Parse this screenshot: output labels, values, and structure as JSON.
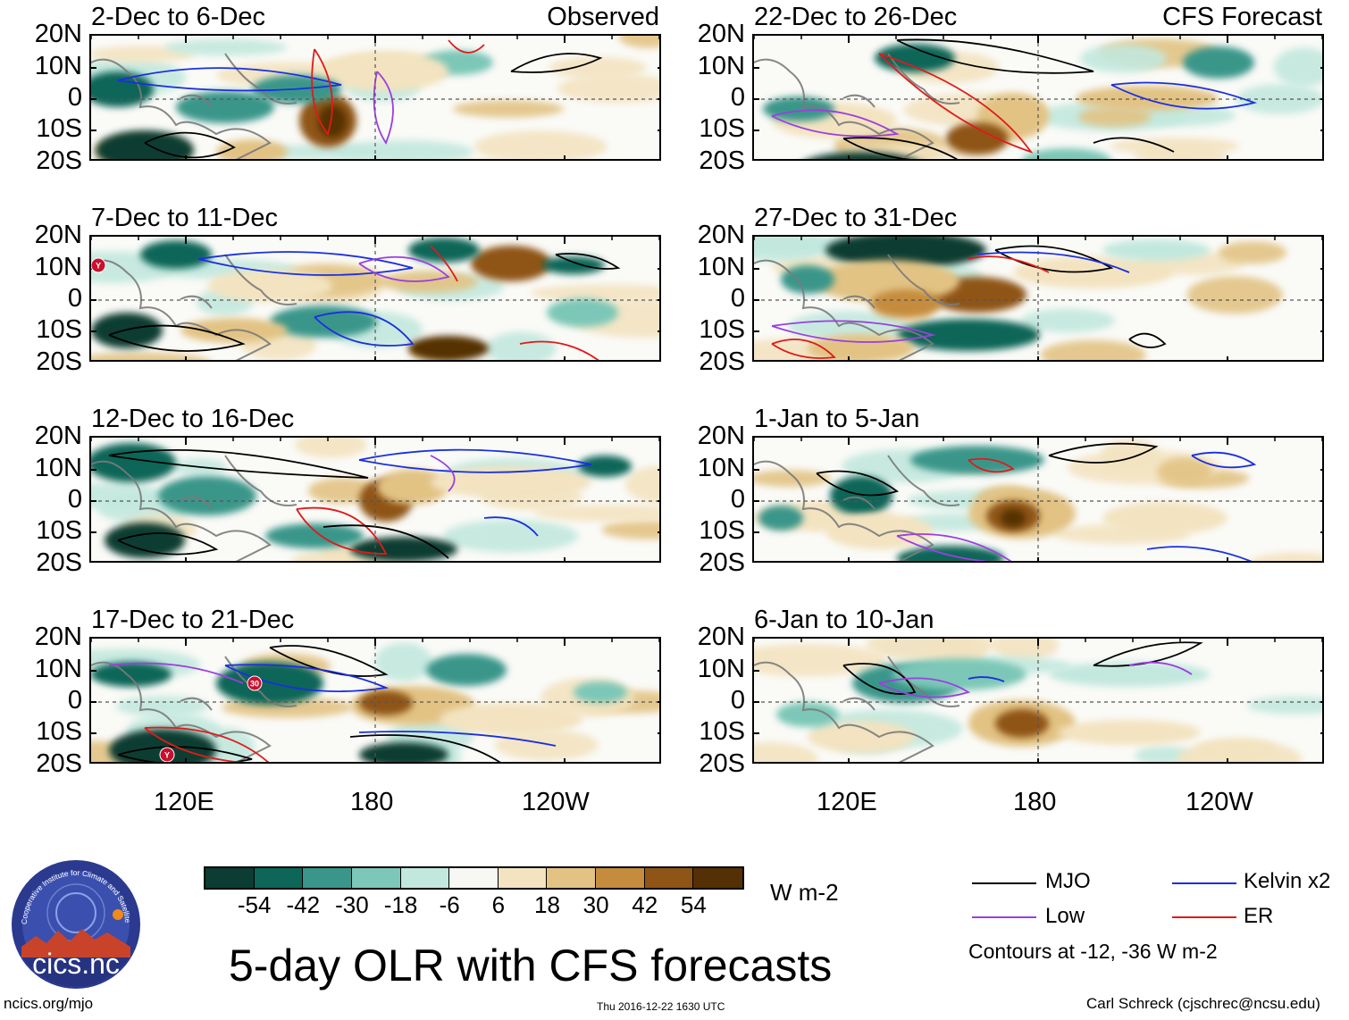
{
  "panels": [
    {
      "title": "2-Dec to 6-Dec",
      "tag": "Observed"
    },
    {
      "title": "22-Dec to 26-Dec",
      "tag": "CFS Forecast"
    },
    {
      "title": "7-Dec to 11-Dec",
      "tag": ""
    },
    {
      "title": "27-Dec to 31-Dec",
      "tag": ""
    },
    {
      "title": "12-Dec to 16-Dec",
      "tag": ""
    },
    {
      "title": "1-Jan to 5-Jan",
      "tag": ""
    },
    {
      "title": "17-Dec to 21-Dec",
      "tag": ""
    },
    {
      "title": "6-Jan to 10-Jan",
      "tag": ""
    }
  ],
  "lat_labels": [
    "20N",
    "10N",
    "0",
    "10S",
    "20S"
  ],
  "lon_labels": [
    "120E",
    "180",
    "120W"
  ],
  "colorbar": {
    "colors": [
      "#0b3d33",
      "#0e6658",
      "#3a968a",
      "#7cc7b7",
      "#c2e8de",
      "#f7f7f4",
      "#f3e3c0",
      "#e2c384",
      "#c58c3e",
      "#8f5516",
      "#553006"
    ],
    "labels": [
      "-54",
      "-42",
      "-30",
      "-18",
      "-6",
      "6",
      "18",
      "30",
      "42",
      "54"
    ],
    "units": "W m-2"
  },
  "legend": {
    "items": [
      {
        "label": "MJO",
        "color": "#000000"
      },
      {
        "label": "Kelvin x2",
        "color": "#1a2fe0"
      },
      {
        "label": "Low",
        "color": "#9b3fe0"
      },
      {
        "label": "ER",
        "color": "#e01a1a"
      }
    ],
    "contours": "Contours at -12, -36 W m-2"
  },
  "logo_text": "cics.nc",
  "logo_ring": "Cooperative Institute for Climate and Satellites",
  "main_title": "5-day OLR with CFS forecasts",
  "footer": {
    "left": "ncics.org/mjo",
    "center": "Thu 2016-12-22 1630 UTC",
    "right": "Carl Schreck (cjschrec@ncsu.edu)"
  },
  "storm_markers": [
    "Y",
    "30",
    "Y"
  ]
}
